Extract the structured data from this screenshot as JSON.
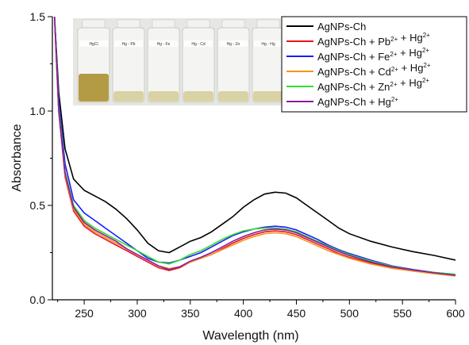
{
  "chart_data": {
    "type": "line",
    "xlabel": "Wavelength (nm)",
    "ylabel": "Absorbance",
    "xlim": [
      220,
      600
    ],
    "ylim": [
      0,
      1.5
    ],
    "xticks": [
      "250",
      "300",
      "350",
      "400",
      "450",
      "500",
      "550",
      "600"
    ],
    "xtick_values": [
      250,
      300,
      350,
      400,
      450,
      500,
      550,
      600
    ],
    "yticks": [
      "0.0",
      "0.5",
      "1.0",
      "1.5"
    ],
    "ytick_values": [
      0,
      0.5,
      1.0,
      1.5
    ],
    "grid": false,
    "legend_position": "top-right",
    "inset_photo_labels": [
      "HgCl",
      "Hg - Pb",
      "Hg - Fe",
      "Hg - Cd",
      "Hg - Zn",
      "Hg - Hg"
    ],
    "series": [
      {
        "name": "AgNPs-Ch",
        "legend": {
          "base": "AgNPs-Ch",
          "ions": []
        },
        "color": "#000000",
        "x": [
          222,
          226,
          232,
          240,
          250,
          260,
          270,
          280,
          290,
          300,
          310,
          320,
          330,
          340,
          350,
          360,
          370,
          380,
          390,
          400,
          410,
          420,
          430,
          440,
          450,
          460,
          470,
          480,
          490,
          500,
          520,
          540,
          560,
          580,
          600
        ],
        "y": [
          1.5,
          1.1,
          0.8,
          0.64,
          0.58,
          0.55,
          0.52,
          0.48,
          0.43,
          0.37,
          0.3,
          0.26,
          0.25,
          0.28,
          0.31,
          0.33,
          0.36,
          0.4,
          0.44,
          0.49,
          0.53,
          0.56,
          0.57,
          0.565,
          0.54,
          0.5,
          0.46,
          0.42,
          0.38,
          0.35,
          0.31,
          0.28,
          0.255,
          0.235,
          0.21
        ]
      },
      {
        "name": "AgNPs-Ch + Pb2+ + Hg2+",
        "legend": {
          "base": "AgNPs-Ch",
          "ions": [
            "Pb",
            "Hg"
          ]
        },
        "color": "#e8141b",
        "x": [
          222,
          226,
          232,
          240,
          250,
          260,
          270,
          280,
          290,
          300,
          310,
          320,
          330,
          340,
          350,
          360,
          370,
          380,
          390,
          400,
          410,
          420,
          430,
          440,
          450,
          460,
          470,
          480,
          490,
          500,
          520,
          540,
          560,
          580,
          600
        ],
        "y": [
          1.5,
          1.0,
          0.65,
          0.47,
          0.39,
          0.35,
          0.32,
          0.29,
          0.26,
          0.23,
          0.2,
          0.17,
          0.155,
          0.17,
          0.2,
          0.22,
          0.24,
          0.27,
          0.3,
          0.325,
          0.345,
          0.36,
          0.365,
          0.36,
          0.345,
          0.32,
          0.295,
          0.27,
          0.245,
          0.225,
          0.195,
          0.17,
          0.155,
          0.14,
          0.128
        ]
      },
      {
        "name": "AgNPs-Ch + Fe2+ + Hg2+",
        "legend": {
          "base": "AgNPs-Ch",
          "ions": [
            "Fe",
            "Hg"
          ]
        },
        "color": "#1a1aff",
        "x": [
          222,
          226,
          232,
          240,
          250,
          260,
          270,
          280,
          290,
          300,
          310,
          320,
          330,
          340,
          350,
          360,
          370,
          380,
          390,
          400,
          410,
          420,
          430,
          440,
          450,
          460,
          470,
          480,
          490,
          500,
          520,
          540,
          560,
          580,
          600
        ],
        "y": [
          1.5,
          1.05,
          0.72,
          0.53,
          0.46,
          0.42,
          0.38,
          0.34,
          0.3,
          0.26,
          0.22,
          0.2,
          0.195,
          0.21,
          0.23,
          0.25,
          0.28,
          0.31,
          0.34,
          0.36,
          0.375,
          0.385,
          0.39,
          0.385,
          0.37,
          0.345,
          0.32,
          0.29,
          0.265,
          0.245,
          0.21,
          0.18,
          0.16,
          0.145,
          0.135
        ]
      },
      {
        "name": "AgNPs-Ch + Cd2+ + Hg2+",
        "legend": {
          "base": "AgNPs-Ch",
          "ions": [
            "Cd",
            "Hg"
          ]
        },
        "color": "#f7931e",
        "x": [
          222,
          226,
          232,
          240,
          250,
          260,
          270,
          280,
          290,
          300,
          310,
          320,
          330,
          340,
          350,
          360,
          370,
          380,
          390,
          400,
          410,
          420,
          430,
          440,
          450,
          460,
          470,
          480,
          490,
          500,
          520,
          540,
          560,
          580,
          600
        ],
        "y": [
          1.5,
          1.0,
          0.66,
          0.48,
          0.4,
          0.36,
          0.33,
          0.3,
          0.27,
          0.24,
          0.21,
          0.18,
          0.165,
          0.175,
          0.2,
          0.22,
          0.24,
          0.265,
          0.29,
          0.315,
          0.335,
          0.35,
          0.355,
          0.35,
          0.335,
          0.31,
          0.285,
          0.26,
          0.24,
          0.22,
          0.19,
          0.167,
          0.152,
          0.138,
          0.126
        ]
      },
      {
        "name": "AgNPs-Ch + Zn2+ + Hg2+",
        "legend": {
          "base": "AgNPs-Ch",
          "ions": [
            "Zn",
            "Hg"
          ]
        },
        "color": "#2fe02f",
        "x": [
          222,
          226,
          232,
          240,
          250,
          260,
          270,
          280,
          290,
          300,
          310,
          320,
          330,
          340,
          350,
          360,
          370,
          380,
          390,
          400,
          410,
          420,
          430,
          440,
          450,
          460,
          470,
          480,
          490,
          500,
          520,
          540,
          560,
          580,
          600
        ],
        "y": [
          1.5,
          1.02,
          0.68,
          0.5,
          0.42,
          0.38,
          0.35,
          0.32,
          0.29,
          0.26,
          0.23,
          0.2,
          0.19,
          0.21,
          0.24,
          0.26,
          0.29,
          0.32,
          0.345,
          0.365,
          0.375,
          0.38,
          0.38,
          0.375,
          0.36,
          0.335,
          0.31,
          0.285,
          0.26,
          0.24,
          0.205,
          0.178,
          0.158,
          0.145,
          0.135
        ]
      },
      {
        "name": "AgNPs-Ch + Hg2+",
        "legend": {
          "base": "AgNPs-Ch",
          "ions": [
            "Hg"
          ]
        },
        "color": "#8a1c9e",
        "x": [
          222,
          226,
          232,
          240,
          250,
          260,
          270,
          280,
          290,
          300,
          310,
          320,
          330,
          340,
          350,
          360,
          370,
          380,
          390,
          400,
          410,
          420,
          430,
          440,
          450,
          460,
          470,
          480,
          490,
          500,
          520,
          540,
          560,
          580,
          600
        ],
        "y": [
          1.5,
          1.0,
          0.67,
          0.49,
          0.41,
          0.37,
          0.34,
          0.31,
          0.27,
          0.24,
          0.21,
          0.18,
          0.16,
          0.175,
          0.205,
          0.225,
          0.25,
          0.28,
          0.31,
          0.335,
          0.355,
          0.37,
          0.375,
          0.37,
          0.355,
          0.33,
          0.305,
          0.28,
          0.255,
          0.235,
          0.2,
          0.175,
          0.158,
          0.143,
          0.13
        ]
      }
    ]
  }
}
